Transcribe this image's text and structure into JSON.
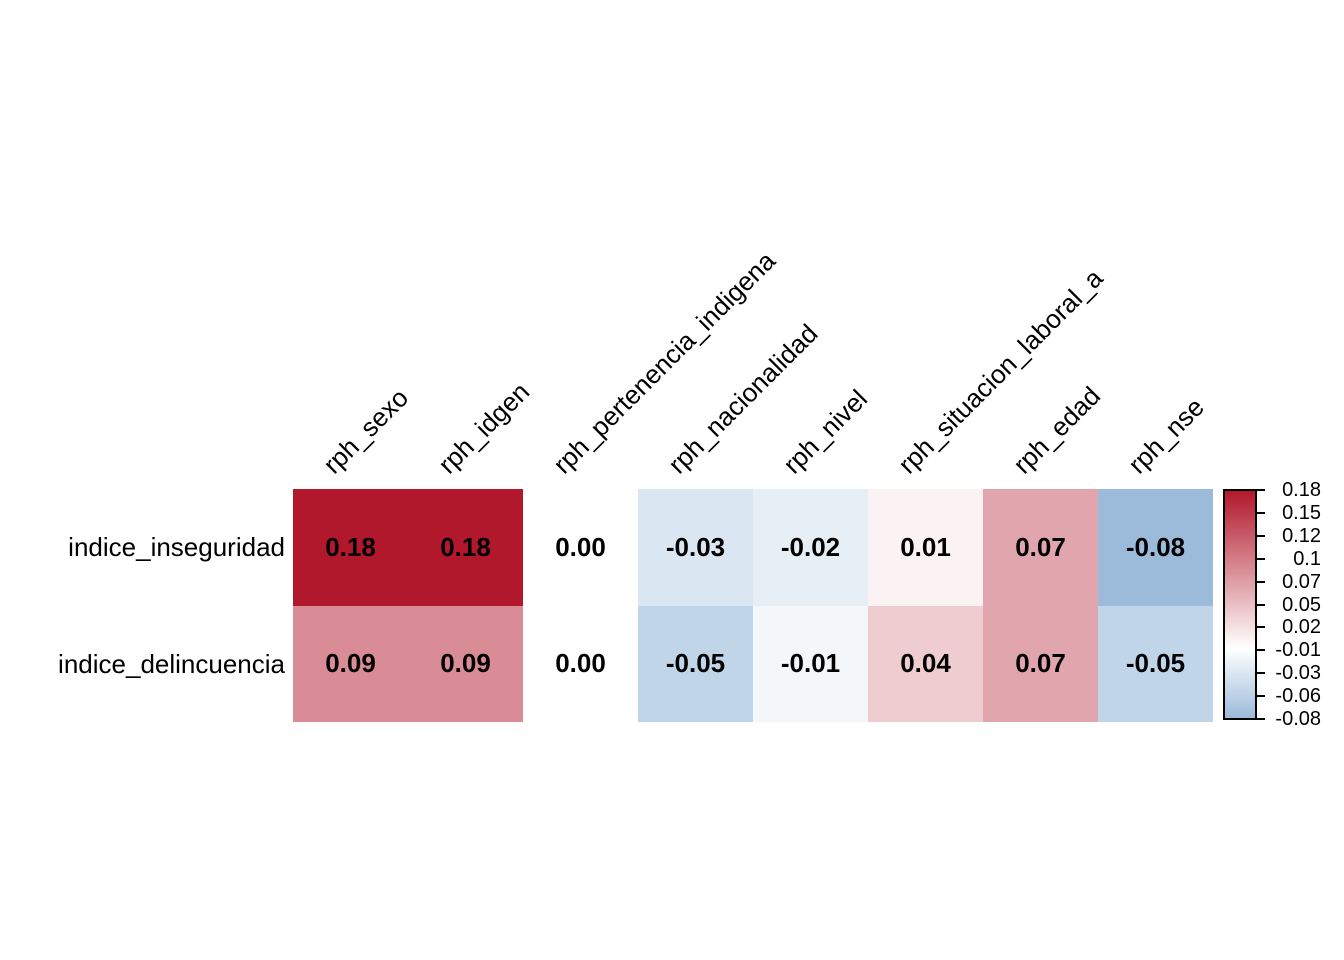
{
  "chart_data": {
    "type": "heatmap",
    "title": "",
    "rows": [
      "indice_inseguridad",
      "indice_delincuencia"
    ],
    "columns": [
      "rph_sexo",
      "rph_idgen",
      "rph_pertenencia_indigena",
      "rph_nacionalidad",
      "rph_nivel",
      "rph_situacion_laboral_a",
      "rph_edad",
      "rph_nse"
    ],
    "values": [
      [
        0.18,
        0.18,
        0.0,
        -0.03,
        -0.02,
        0.01,
        0.07,
        -0.08
      ],
      [
        0.09,
        0.09,
        0.0,
        -0.05,
        -0.01,
        0.04,
        0.07,
        -0.05
      ]
    ],
    "value_decimals": 2,
    "colorbar": {
      "tick_labels": [
        "0.18",
        "0.15",
        "0.12",
        "0.1",
        "0.07",
        "0.05",
        "0.02",
        "-0.01",
        "-0.03",
        "-0.06",
        "-0.08"
      ],
      "max": 0.18,
      "min": -0.08,
      "position": "right"
    },
    "colors": {
      "positive_max": "#B2182B",
      "negative_max": "#2166AC",
      "neutral": "#FFFFFF",
      "scale_limit": 0.18,
      "label_text": "#000000",
      "background": "#FFFFFF"
    },
    "legend_position": "right",
    "grid": false,
    "column_label_rotation_deg": 45
  }
}
